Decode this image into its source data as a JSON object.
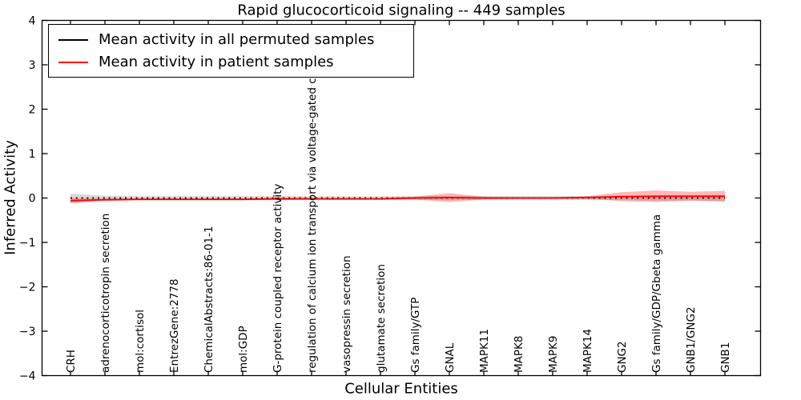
{
  "figure": {
    "title": "Rapid glucocorticoid signaling -- 449 samples",
    "xlabel": "Cellular Entities",
    "ylabel": "Inferred Activity"
  },
  "chart_data": {
    "type": "line",
    "title": "Rapid glucocorticoid signaling -- 449 samples",
    "xlabel": "Cellular Entities",
    "ylabel": "Inferred Activity",
    "ylim": [
      -4,
      4
    ],
    "yticks": [
      -4,
      -3,
      -2,
      -1,
      0,
      1,
      2,
      3,
      4
    ],
    "grid": false,
    "legend_position": "upper left",
    "categories": [
      "CRH",
      "adrenocorticotropin secretion",
      "mol:cortisol",
      "EntrezGene:2778",
      "ChemicalAbstracts:86-01-1",
      "mol:GDP",
      "G-protein coupled receptor activity",
      "regulation of calcium ion transport via voltage-gated channels",
      "vasopressin secretion",
      "glutamate secretion",
      "Gs family/GTP",
      "GNAL",
      "MAPK11",
      "MAPK8",
      "MAPK9",
      "MAPK14",
      "GNG2",
      "Gs family/GDP/Gbeta gamma",
      "GNB1/GNG2",
      "GNB1"
    ],
    "series": [
      {
        "name": "Mean activity in all permuted samples",
        "color": "#000000",
        "linestyle": "dotted",
        "values": [
          0,
          0,
          0,
          0,
          0,
          0,
          0,
          0,
          0,
          0,
          0,
          0,
          0,
          0,
          0,
          0,
          0,
          0,
          0,
          0
        ],
        "band_halfwidth": [
          0.1,
          0.05,
          0.04,
          0.04,
          0.04,
          0.04,
          0.04,
          0.04,
          0.04,
          0.04,
          0.04,
          0.05,
          0.04,
          0.04,
          0.04,
          0.04,
          0.05,
          0.06,
          0.06,
          0.07
        ],
        "band_color": "rgba(0,0,0,0.15)"
      },
      {
        "name": "Mean activity in patient samples",
        "color": "#ff0000",
        "linestyle": "solid",
        "values": [
          -0.06,
          -0.04,
          -0.03,
          -0.03,
          -0.03,
          -0.03,
          -0.02,
          -0.02,
          -0.02,
          -0.02,
          0,
          0.01,
          0,
          0,
          0,
          0.01,
          0.03,
          0.04,
          0.04,
          0.04
        ],
        "band_halfwidth": [
          0.06,
          0.03,
          0.02,
          0.02,
          0.02,
          0.02,
          0.03,
          0.02,
          0.02,
          0.02,
          0.03,
          0.1,
          0.03,
          0.02,
          0.02,
          0.03,
          0.1,
          0.13,
          0.1,
          0.12
        ],
        "band_color": "rgba(255,0,0,0.28)"
      }
    ]
  }
}
